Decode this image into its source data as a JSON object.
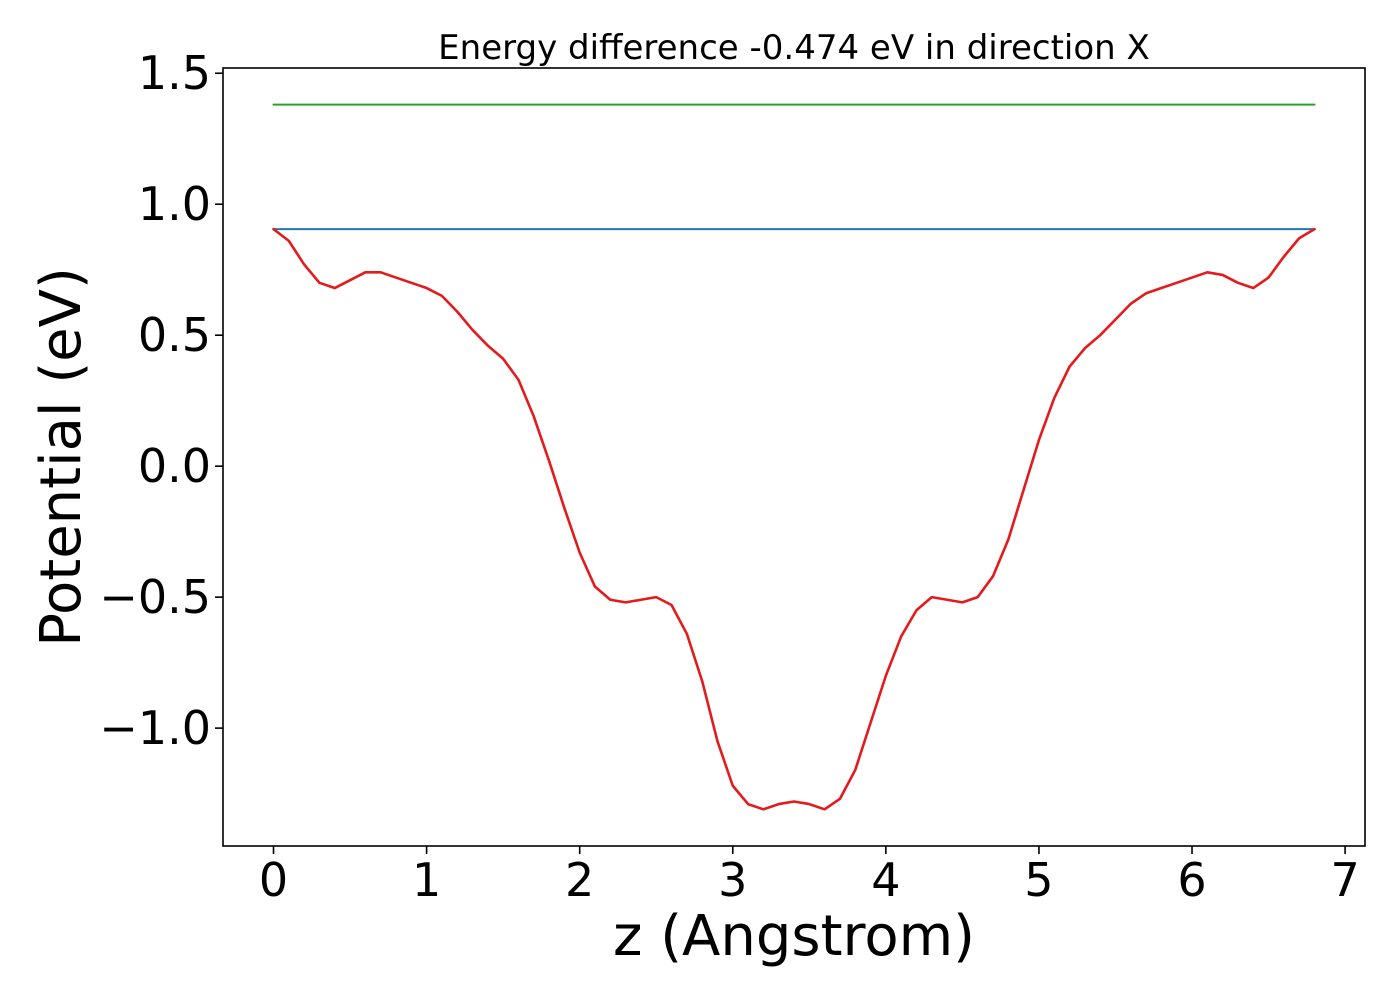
{
  "chart_data": {
    "type": "line",
    "title": "Energy difference -0.474 eV in direction X",
    "xlabel": "z (Angstrom)",
    "ylabel": "Potential (eV)",
    "xlim": [
      -0.33,
      7.13
    ],
    "ylim": [
      -1.45,
      1.52
    ],
    "xticks": [
      0,
      1,
      2,
      3,
      4,
      5,
      6,
      7
    ],
    "xtick_labels": [
      "0",
      "1",
      "2",
      "3",
      "4",
      "5",
      "6",
      "7"
    ],
    "yticks": [
      -1.0,
      -0.5,
      0.0,
      0.5,
      1.0,
      1.5
    ],
    "ytick_labels": [
      "−1.0",
      "−0.5",
      "0.0",
      "0.5",
      "1.0",
      "1.5"
    ],
    "grid": false,
    "series": [
      {
        "color": "#2ca02c",
        "x": [
          0,
          6.8
        ],
        "y": [
          1.38,
          1.38
        ]
      },
      {
        "color": "#1f77b4",
        "x": [
          0,
          6.8
        ],
        "y": [
          0.905,
          0.905
        ]
      },
      {
        "color": "#e41a1c",
        "x": [
          0.0,
          0.1,
          0.2,
          0.3,
          0.4,
          0.5,
          0.6,
          0.7,
          0.8,
          0.9,
          1.0,
          1.1,
          1.2,
          1.3,
          1.4,
          1.5,
          1.6,
          1.7,
          1.8,
          1.9,
          2.0,
          2.1,
          2.2,
          2.3,
          2.4,
          2.5,
          2.6,
          2.7,
          2.8,
          2.9,
          3.0,
          3.1,
          3.2,
          3.3,
          3.4,
          3.5,
          3.6,
          3.7,
          3.8,
          3.9,
          4.0,
          4.1,
          4.2,
          4.3,
          4.4,
          4.5,
          4.6,
          4.7,
          4.8,
          4.9,
          5.0,
          5.1,
          5.2,
          5.3,
          5.4,
          5.5,
          5.6,
          5.7,
          5.8,
          5.9,
          6.0,
          6.1,
          6.2,
          6.3,
          6.4,
          6.5,
          6.6,
          6.7,
          6.8
        ],
        "y": [
          0.905,
          0.86,
          0.77,
          0.7,
          0.68,
          0.71,
          0.74,
          0.74,
          0.72,
          0.7,
          0.68,
          0.65,
          0.59,
          0.52,
          0.46,
          0.41,
          0.33,
          0.19,
          0.02,
          -0.16,
          -0.33,
          -0.46,
          -0.51,
          -0.52,
          -0.51,
          -0.5,
          -0.53,
          -0.64,
          -0.82,
          -1.05,
          -1.22,
          -1.29,
          -1.31,
          -1.29,
          -1.28,
          -1.29,
          -1.31,
          -1.27,
          -1.16,
          -0.98,
          -0.8,
          -0.65,
          -0.55,
          -0.5,
          -0.51,
          -0.52,
          -0.5,
          -0.42,
          -0.28,
          -0.09,
          0.1,
          0.26,
          0.38,
          0.45,
          0.5,
          0.56,
          0.62,
          0.66,
          0.68,
          0.7,
          0.72,
          0.74,
          0.73,
          0.7,
          0.68,
          0.72,
          0.8,
          0.87,
          0.905
        ]
      }
    ]
  }
}
